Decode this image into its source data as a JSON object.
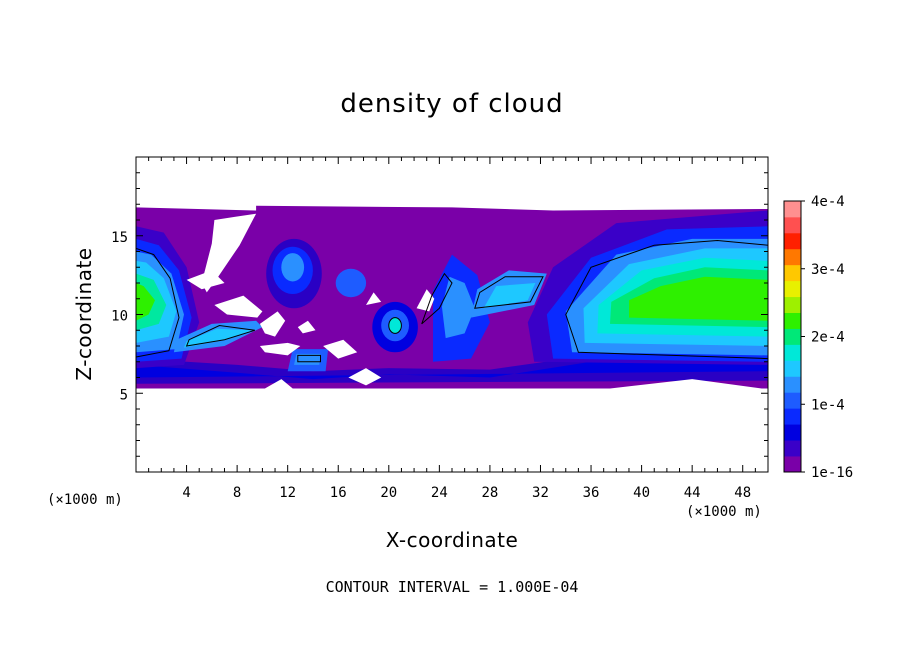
{
  "chart_data": {
    "type": "heatmap",
    "title": "density of cloud",
    "xlabel": "X-coordinate",
    "ylabel": "Z-coordinate",
    "x_unit": "(×1000 m)",
    "y_unit": "(×1000 m)",
    "xlim": [
      0,
      50
    ],
    "ylim": [
      0,
      20
    ],
    "x_ticks": [
      4,
      8,
      12,
      16,
      20,
      24,
      28,
      32,
      36,
      40,
      44,
      48
    ],
    "x_tick_labels": [
      "4",
      "8",
      "12",
      "16",
      "20",
      "24",
      "28",
      "32",
      "36",
      "40",
      "44",
      "48"
    ],
    "y_ticks": [
      5,
      10,
      15
    ],
    "y_tick_labels": [
      "5",
      "10",
      "15"
    ],
    "colorbar": {
      "min": 1e-16,
      "max": 0.0004,
      "tick_values": [
        1e-16,
        0.0001,
        0.0002,
        0.0003,
        0.0004
      ],
      "tick_labels": [
        "1e-16",
        "1e-4",
        "2e-4",
        "3e-4",
        "4e-4"
      ],
      "colors": [
        "#7a00a8",
        "#3a00c8",
        "#0000e0",
        "#0a2aff",
        "#1e5cff",
        "#2a90ff",
        "#1ec8ff",
        "#00e8d8",
        "#00e878",
        "#2ef000",
        "#9ef000",
        "#e8f000",
        "#ffc800",
        "#ff7800",
        "#ff2000",
        "#ff5050",
        "#ff9090"
      ]
    },
    "cloud_extent_z": [
      5.3,
      16.8
    ],
    "features": [
      {
        "name": "left core",
        "x": [
          0,
          3.8
        ],
        "z": [
          7,
          14
        ],
        "peak": 0.00018
      },
      {
        "name": "right core",
        "x": [
          34,
          50
        ],
        "z": [
          7.2,
          14.5
        ],
        "peak": 0.0002
      }
    ],
    "footer": "CONTOUR INTERVAL = 1.000E-04"
  }
}
